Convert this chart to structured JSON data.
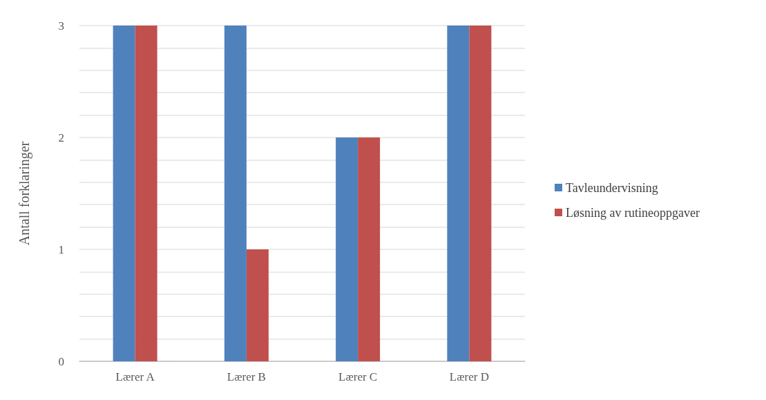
{
  "chart_data": {
    "type": "bar",
    "ylabel": "Antall forklaringer",
    "categories": [
      "Lærer A",
      "Lærer B",
      "Lærer C",
      "Lærer D"
    ],
    "series": [
      {
        "name": "Tavleundervisning",
        "color": "#4f81bd",
        "values": [
          3,
          3,
          2,
          3
        ]
      },
      {
        "name": "Løsning av rutineoppgaver",
        "color": "#c0504d",
        "values": [
          3,
          1,
          2,
          3
        ]
      }
    ],
    "ylim": [
      0,
      3
    ],
    "yticks": [
      0,
      {
        "value": 0.2,
        "label": null
      },
      {
        "value": 0.4,
        "label": null
      },
      {
        "value": 0.6,
        "label": null
      },
      {
        "value": 0.8,
        "label": null
      },
      1,
      {
        "value": 1.2,
        "label": null
      },
      {
        "value": 1.4,
        "label": null
      },
      {
        "value": 1.6,
        "label": null
      },
      {
        "value": 1.8,
        "label": null
      },
      2,
      {
        "value": 2.2,
        "label": null
      },
      {
        "value": 2.4,
        "label": null
      },
      {
        "value": 2.6,
        "label": null
      },
      {
        "value": 2.8,
        "label": null
      },
      3
    ],
    "grid": "y",
    "legend": "right"
  }
}
